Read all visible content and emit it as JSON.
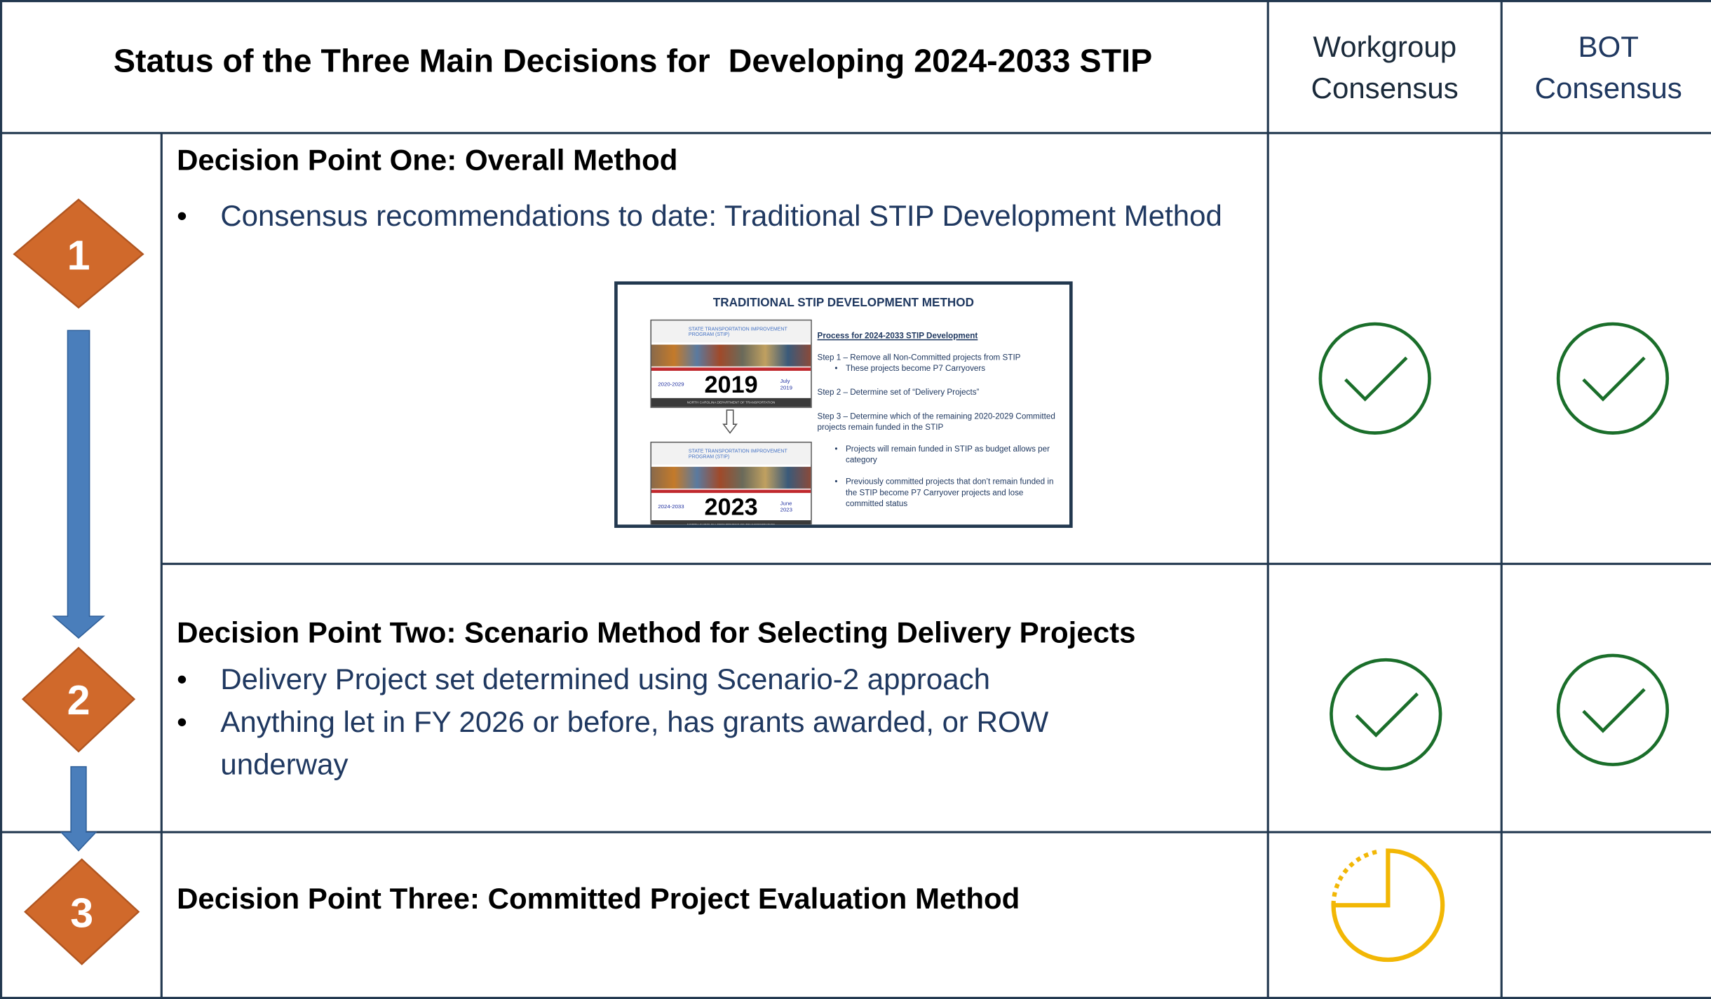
{
  "header": {
    "title": "Status of the Three Main Decisions for  Developing 2024-2033 STIP",
    "workgroup": "Workgroup Consensus",
    "bot": "BOT Consensus"
  },
  "rows": [
    {
      "number": "1",
      "heading": "Decision Point One:  Overall Method",
      "bullets": [
        "Consensus recommendations to date: Traditional STIP Development Method"
      ]
    },
    {
      "number": "2",
      "heading": "Decision Point Two: Scenario Method for Selecting Delivery Projects",
      "bullets": [
        "Delivery Project set determined using Scenario-2 approach",
        "Anything let in FY 2026 or before, has grants awarded, or ROW underway"
      ]
    },
    {
      "number": "3",
      "heading": "Decision Point Three: Committed Project Evaluation Method",
      "bullets": []
    }
  ],
  "embedded_image": {
    "title": "TRADITIONAL STIP DEVELOPMENT METHOD",
    "banners": [
      {
        "program": "STATE TRANSPORTATION IMPROVEMENT PROGRAM (STIP)",
        "range": "2020-2029",
        "year": "2019",
        "date": "July 2019",
        "footer": "NORTH CAROLINA DEPARTMENT OF TRANSPORTATION"
      },
      {
        "program": "STATE TRANSPORTATION IMPROVEMENT PROGRAM (STIP)",
        "range": "2024-2033",
        "year": "2023",
        "date": "June 2023",
        "footer": "NORTH CAROLINA DEPARTMENT OF TRANSPORTATION"
      }
    ],
    "process_heading": "Process for 2024-2033 STIP Development",
    "steps": [
      {
        "text": "Step 1 – Remove all Non-Committed projects from STIP",
        "bullets": [
          "These projects become P7 Carryovers"
        ]
      },
      {
        "text": "Step 2 – Determine set of “Delivery Projects”",
        "bullets": []
      },
      {
        "text": "Step 3 – Determine which of the remaining 2020-2029 Committed projects remain funded in the STIP",
        "bullets": [
          "Projects will remain funded in STIP as budget allows per category",
          "Previously committed projects that don’t remain funded in the STIP become P7 Carryover projects and lose committed status"
        ]
      }
    ]
  }
}
